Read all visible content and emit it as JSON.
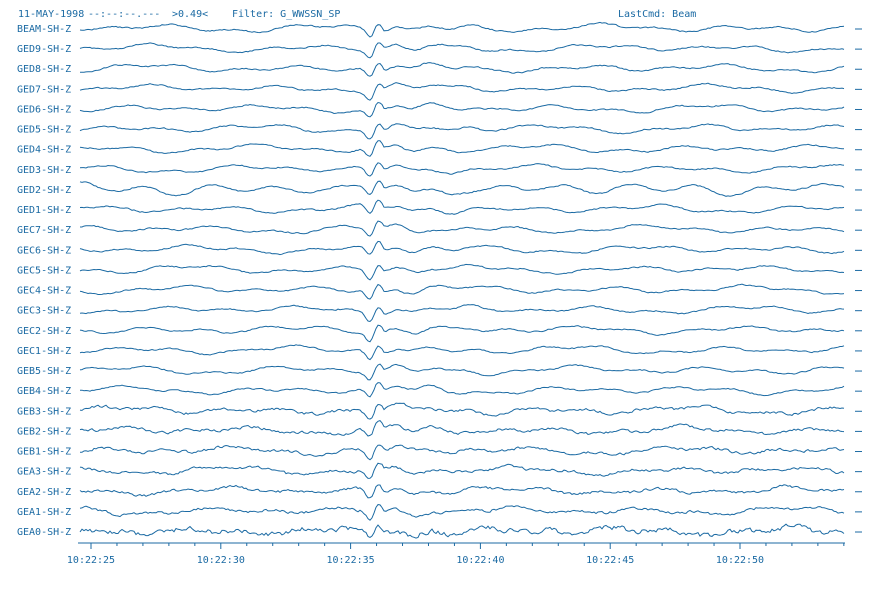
{
  "header": {
    "date": "11-MAY-1998",
    "time": "--:--:--.---",
    "amplitude": ">0.49<",
    "filter": "Filter: G_WWSSN_SP",
    "last_cmd": "LastCmd: Beam"
  },
  "traces": [
    "BEAM-SH-Z",
    "GED9-SH-Z",
    "GED8-SH-Z",
    "GED7-SH-Z",
    "GED6-SH-Z",
    "GED5-SH-Z",
    "GED4-SH-Z",
    "GED3-SH-Z",
    "GED2-SH-Z",
    "GED1-SH-Z",
    "GEC7-SH-Z",
    "GEC6-SH-Z",
    "GEC5-SH-Z",
    "GEC4-SH-Z",
    "GEC3-SH-Z",
    "GEC2-SH-Z",
    "GEC1-SH-Z",
    "GEB5-SH-Z",
    "GEB4-SH-Z",
    "GEB3-SH-Z",
    "GEB2-SH-Z",
    "GEB1-SH-Z",
    "GEA3-SH-Z",
    "GEA2-SH-Z",
    "GEA1-SH-Z",
    "GEA0-SH-Z"
  ],
  "time_axis": {
    "ticks": [
      "10:22:25",
      "10:22:30",
      "10:22:35",
      "10:22:40",
      "10:22:45",
      "10:22:50"
    ]
  }
}
